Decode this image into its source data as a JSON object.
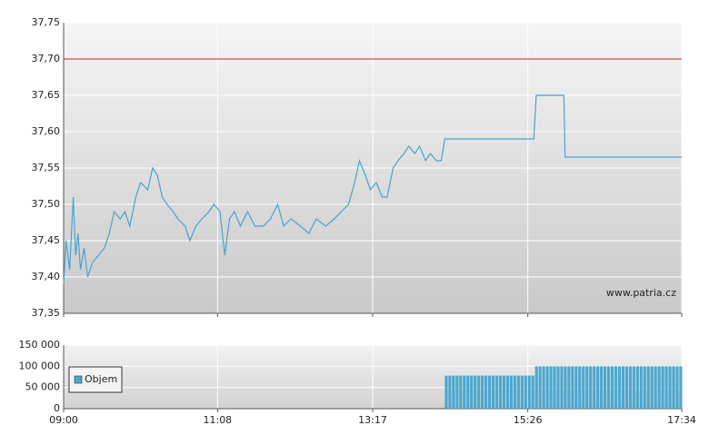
{
  "chart_data": [
    {
      "type": "line",
      "x": [
        "09:00",
        "09:02",
        "09:05",
        "09:08",
        "09:10",
        "09:12",
        "09:14",
        "09:17",
        "09:20",
        "09:24",
        "09:29",
        "09:34",
        "09:38",
        "09:42",
        "09:47",
        "09:51",
        "09:55",
        "10:00",
        "10:04",
        "10:10",
        "10:14",
        "10:18",
        "10:22",
        "10:26",
        "10:31",
        "10:35",
        "10:41",
        "10:45",
        "10:50",
        "10:55",
        "11:01",
        "11:05",
        "11:10",
        "11:14",
        "11:18",
        "11:22",
        "11:27",
        "11:33",
        "11:39",
        "11:46",
        "11:52",
        "11:58",
        "12:03",
        "12:09",
        "12:17",
        "12:24",
        "12:30",
        "12:38",
        "12:45",
        "12:51",
        "12:57",
        "13:02",
        "13:06",
        "13:11",
        "13:15",
        "13:20",
        "13:25",
        "13:29",
        "13:34",
        "13:38",
        "13:43",
        "13:47",
        "13:52",
        "13:56",
        "14:01",
        "14:05",
        "14:10",
        "14:14",
        "14:17",
        "15:31",
        "15:33",
        "15:56",
        "15:57",
        "17:34"
      ],
      "values": [
        37.39,
        37.45,
        37.41,
        37.51,
        37.43,
        37.46,
        37.41,
        37.44,
        37.4,
        37.42,
        37.43,
        37.44,
        37.46,
        37.49,
        37.48,
        37.49,
        37.47,
        37.51,
        37.53,
        37.52,
        37.55,
        37.54,
        37.51,
        37.5,
        37.49,
        37.48,
        37.47,
        37.45,
        37.47,
        37.48,
        37.49,
        37.5,
        37.49,
        37.43,
        37.48,
        37.49,
        37.47,
        37.49,
        37.47,
        37.47,
        37.48,
        37.5,
        37.47,
        37.48,
        37.47,
        37.46,
        37.48,
        37.47,
        37.48,
        37.49,
        37.5,
        37.53,
        37.56,
        37.54,
        37.52,
        37.53,
        37.51,
        37.51,
        37.55,
        37.56,
        37.57,
        37.58,
        37.57,
        37.58,
        37.56,
        37.57,
        37.56,
        37.56,
        37.59,
        37.59,
        37.65,
        37.65,
        37.565,
        37.565
      ],
      "color": "#4aa3cf",
      "xlim": [
        "09:00",
        "17:34"
      ],
      "ylim": [
        37.35,
        37.75
      ],
      "yticks": [
        {
          "value": 37.35,
          "label": "37,35"
        },
        {
          "value": 37.4,
          "label": "37,40"
        },
        {
          "value": 37.45,
          "label": "37,45"
        },
        {
          "value": 37.5,
          "label": "37,50"
        },
        {
          "value": 37.55,
          "label": "37,55"
        },
        {
          "value": 37.6,
          "label": "37,60"
        },
        {
          "value": 37.65,
          "label": "37,65"
        },
        {
          "value": 37.7,
          "label": "37,70"
        },
        {
          "value": 37.75,
          "label": "37,75"
        }
      ],
      "reference_line": {
        "value": 37.7,
        "color": "#cc2222"
      },
      "source": "www.patria.cz",
      "grid": true
    },
    {
      "type": "bar",
      "x": [
        "14:17",
        "14:20",
        "14:23",
        "14:26",
        "14:29",
        "14:32",
        "14:35",
        "14:38",
        "14:41",
        "14:44",
        "14:47",
        "14:50",
        "14:53",
        "14:56",
        "14:59",
        "15:02",
        "15:05",
        "15:08",
        "15:11",
        "15:14",
        "15:17",
        "15:20",
        "15:23",
        "15:26",
        "15:29",
        "15:32",
        "15:35",
        "15:38",
        "15:41",
        "15:44",
        "15:47",
        "15:50",
        "15:53",
        "15:56",
        "15:59",
        "16:02",
        "16:05",
        "16:08",
        "16:11",
        "16:14",
        "16:17",
        "16:20",
        "16:23",
        "16:26",
        "16:29",
        "16:32",
        "16:35",
        "16:38",
        "16:41",
        "16:44",
        "16:47",
        "16:50",
        "16:53",
        "16:56",
        "16:59",
        "17:02",
        "17:05",
        "17:08",
        "17:11",
        "17:14",
        "17:17",
        "17:20",
        "17:23",
        "17:26",
        "17:29",
        "17:32"
      ],
      "series": [
        {
          "name": "Objem",
          "color": "#4aa8d0",
          "values": [
            78000,
            78000,
            78000,
            78000,
            78000,
            78000,
            78000,
            78000,
            78000,
            78000,
            78000,
            78000,
            78000,
            78000,
            78000,
            78000,
            78000,
            78000,
            78000,
            78000,
            78000,
            78000,
            78000,
            78000,
            78000,
            100000,
            100000,
            100000,
            100000,
            100000,
            100000,
            100000,
            100000,
            100000,
            100000,
            100000,
            100000,
            100000,
            100000,
            100000,
            100000,
            100000,
            100000,
            100000,
            100000,
            100000,
            100000,
            100000,
            100000,
            100000,
            100000,
            100000,
            100000,
            100000,
            100000,
            100000,
            100000,
            100000,
            100000,
            100000,
            100000,
            100000,
            100000,
            100000,
            100000,
            100000
          ]
        }
      ],
      "xlim": [
        "09:00",
        "17:34"
      ],
      "xticks": [
        "09:00",
        "11:08",
        "13:17",
        "15:26",
        "17:34"
      ],
      "ylim": [
        0,
        150000
      ],
      "yticks": [
        0,
        {
          "value": 50000,
          "label": "50 000"
        },
        {
          "value": 100000,
          "label": "100 000"
        },
        {
          "value": 150000,
          "label": "150 000"
        }
      ],
      "legend": "left",
      "grid": true
    }
  ]
}
